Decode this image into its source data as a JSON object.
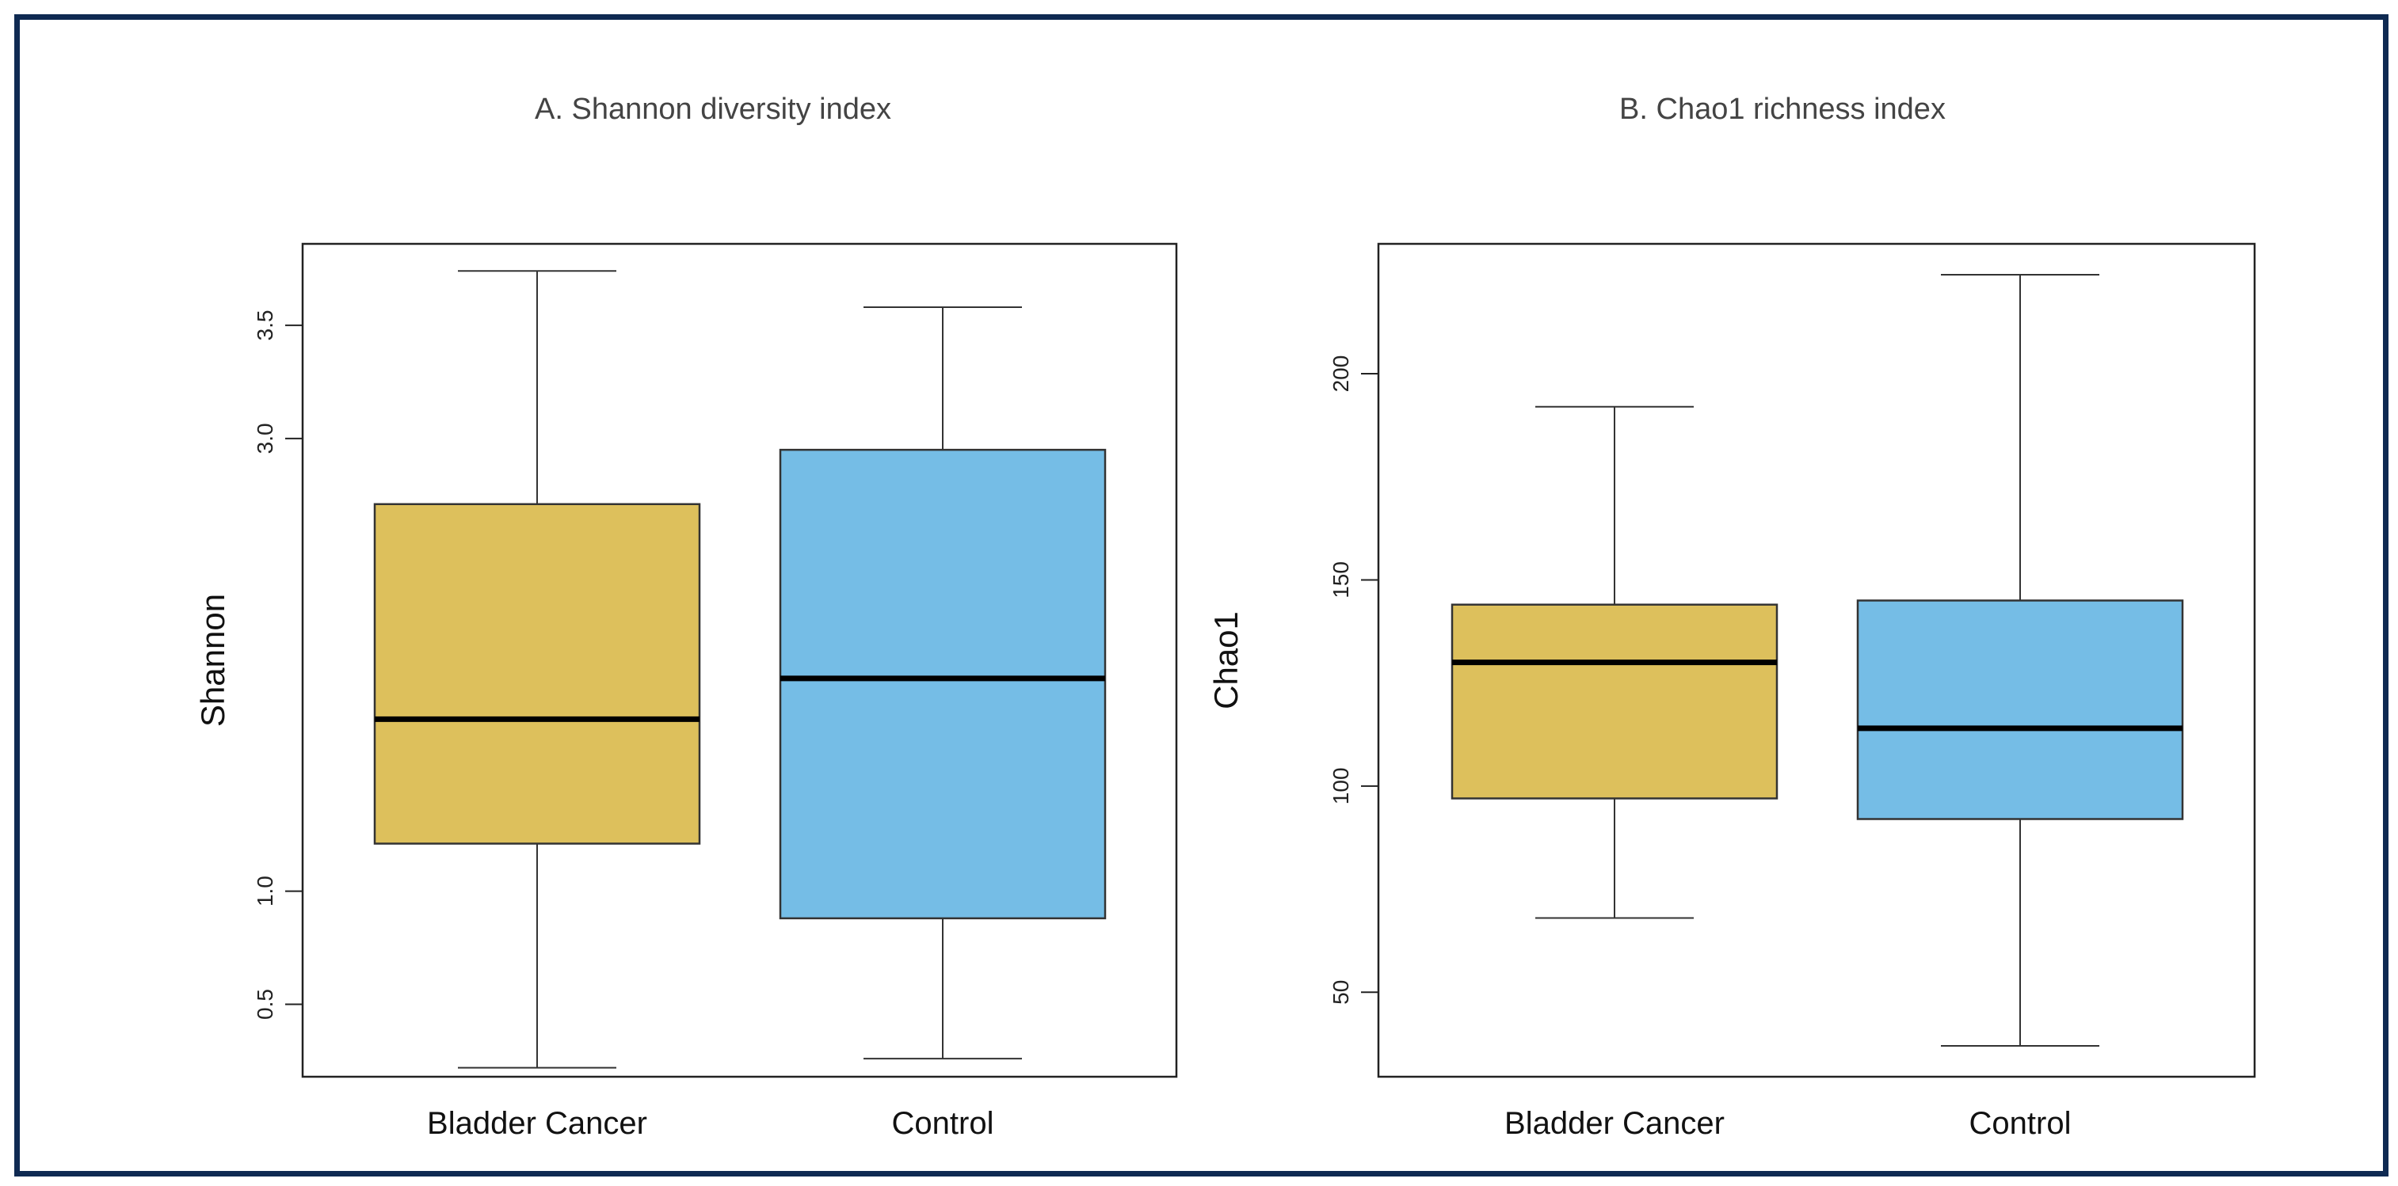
{
  "chart_data": [
    {
      "type": "boxplot",
      "title": "A. Shannon diversity index",
      "xlabel": "",
      "ylabel": "Shannon",
      "ylim": [
        0.18,
        3.86
      ],
      "yticks": [
        0.5,
        1.0,
        3.0,
        3.5
      ],
      "ytick_labels": [
        "0.5",
        "1.0",
        "3.0",
        "3.5"
      ],
      "categories": [
        "Bladder Cancer",
        "Control"
      ],
      "boxes": [
        {
          "name": "Bladder Cancer",
          "whisker_low": 0.22,
          "q1": 1.21,
          "median": 1.76,
          "q3": 2.71,
          "whisker_high": 3.74,
          "color": "#ddc05c"
        },
        {
          "name": "Control",
          "whisker_low": 0.26,
          "q1": 0.88,
          "median": 1.94,
          "q3": 2.95,
          "whisker_high": 3.58,
          "color": "#75bde6"
        }
      ]
    },
    {
      "type": "boxplot",
      "title": "B. Chao1 richness index",
      "xlabel": "",
      "ylabel": "Chao1",
      "ylim": [
        29.5,
        231.5
      ],
      "yticks": [
        50,
        100,
        150,
        200
      ],
      "ytick_labels": [
        "50",
        "100",
        "150",
        "200"
      ],
      "categories": [
        "Bladder Cancer",
        "Control"
      ],
      "boxes": [
        {
          "name": "Bladder Cancer",
          "whisker_low": 68,
          "q1": 97,
          "median": 130,
          "q3": 144,
          "whisker_high": 192,
          "color": "#ddc05c"
        },
        {
          "name": "Control",
          "whisker_low": 37,
          "q1": 92,
          "median": 114,
          "q3": 145,
          "whisker_high": 224,
          "color": "#75bde6"
        }
      ]
    }
  ]
}
